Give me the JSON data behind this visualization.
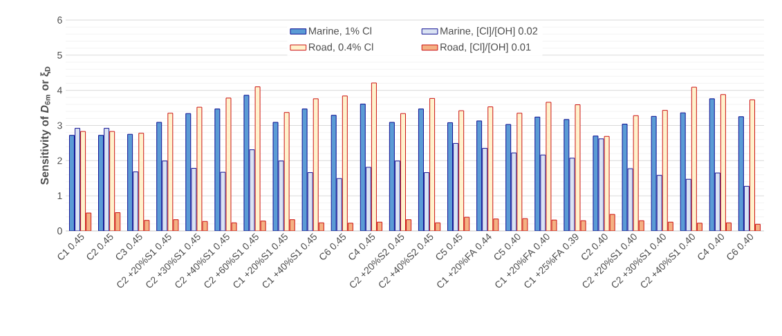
{
  "chart_data": {
    "type": "bar",
    "ylabel": "Sensitivity of *D*$_{6m}$ or ξ$_{D}$",
    "categories": [
      "C1 0.45",
      "C2 0.45",
      "C3 0.45",
      "C2 +20%S1 0.45",
      "C2 +30%S1 0.45",
      "C2 +40%S1 0.45",
      "C2 +60%S1 0.45",
      "C1 +20%S1 0.45",
      "C1 +40%S1 0.45",
      "C6 0.45",
      "C4 0.45",
      "C2 +20%S2 0.45",
      "C2 +40%S2 0.45",
      "C5 0.45",
      "C1 +20%FA 0.44",
      "C5 0.40",
      "C1 +20%FA 0.40",
      "C1 +25%FA 0.39",
      "C2 0.40",
      "C2 +20%S1 0.40",
      "C2 +30%S1 0.40",
      "C2 +40%S1 0.40",
      "C4 0.40",
      "C6 0.40"
    ],
    "series": [
      {
        "name": "Marine, 1% Cl",
        "color": "#5b9bd5",
        "values": [
          2.72,
          2.72,
          2.75,
          3.09,
          3.34,
          3.47,
          3.86,
          3.09,
          3.47,
          3.29,
          3.61,
          3.09,
          3.47,
          3.08,
          3.13,
          3.03,
          3.24,
          3.17,
          2.7,
          3.04,
          3.26,
          3.36,
          3.76,
          3.25
        ]
      },
      {
        "name": "Marine, [Cl]/[OH] 0.02",
        "color": "#dae3f3",
        "values": [
          2.92,
          2.92,
          1.68,
          1.99,
          1.78,
          1.67,
          2.31,
          1.99,
          1.66,
          1.49,
          1.81,
          1.99,
          1.66,
          2.49,
          2.35,
          2.22,
          2.16,
          2.07,
          2.62,
          1.77,
          1.58,
          1.47,
          1.65,
          1.27
        ]
      },
      {
        "name": "Road, 0.4% Cl",
        "color": "#fff2cc",
        "values": [
          2.83,
          2.83,
          2.78,
          3.35,
          3.52,
          3.78,
          4.1,
          3.37,
          3.76,
          3.84,
          4.21,
          3.34,
          3.77,
          3.42,
          3.53,
          3.35,
          3.66,
          3.59,
          2.69,
          3.28,
          3.43,
          4.09,
          3.88,
          3.73
        ]
      },
      {
        "name": "Road, [Cl]/[OH] 0.01",
        "color": "#f4b183",
        "values": [
          0.51,
          0.52,
          0.3,
          0.32,
          0.27,
          0.23,
          0.28,
          0.32,
          0.23,
          0.22,
          0.25,
          0.32,
          0.23,
          0.39,
          0.34,
          0.35,
          0.31,
          0.29,
          0.47,
          0.29,
          0.25,
          0.22,
          0.23,
          0.19
        ]
      }
    ],
    "ylim": [
      0,
      6
    ],
    "yticks": [
      0,
      1,
      2,
      3,
      4,
      5,
      6
    ],
    "grid": "y",
    "legend": "top"
  }
}
